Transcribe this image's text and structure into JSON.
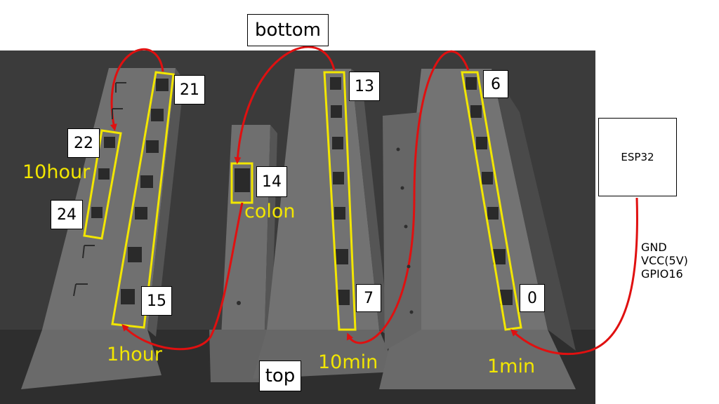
{
  "labels": {
    "bottom": "bottom",
    "top": "top",
    "esp32": "ESP32",
    "ten_hour": "10hour",
    "one_hour": "1hour",
    "colon": "colon",
    "ten_min": "10min",
    "one_min": "1min"
  },
  "led_indices": {
    "n21": "21",
    "n22": "22",
    "n24": "24",
    "n15": "15",
    "n14": "14",
    "n13": "13",
    "n7": "7",
    "n6": "6",
    "n0": "0"
  },
  "pins": [
    "GND",
    "VCC(5V)",
    "GPIO16"
  ],
  "colors": {
    "background": "#3a3a3a",
    "panel": "#6b6b6b",
    "highlight": "#f2e600",
    "wire": "#e01010"
  }
}
